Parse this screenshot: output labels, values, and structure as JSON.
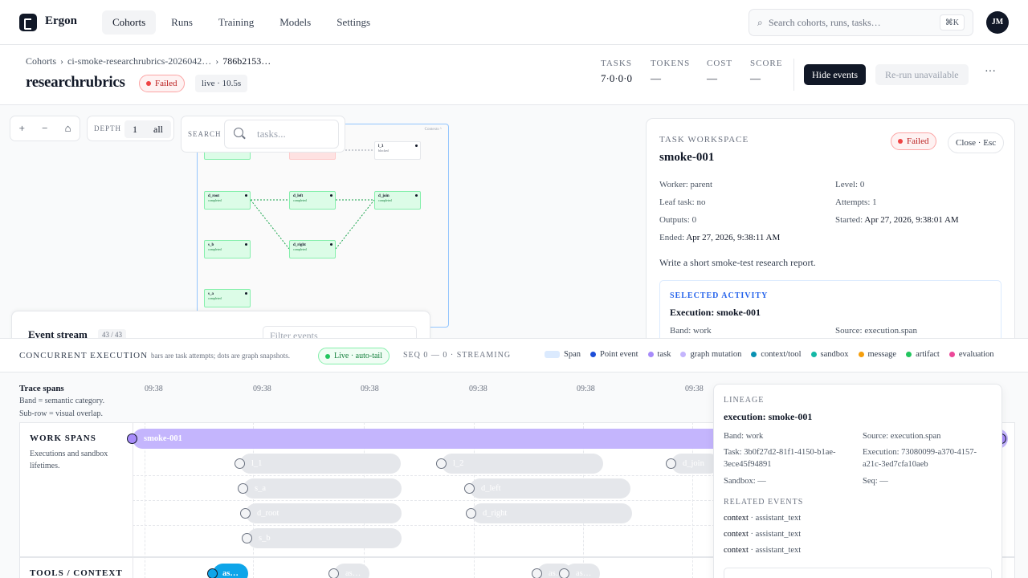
{
  "app": {
    "name": "Ergon",
    "avatar": "JM"
  },
  "nav": [
    "Cohorts",
    "Runs",
    "Training",
    "Models",
    "Settings"
  ],
  "search": {
    "placeholder": "Search cohorts, runs, tasks…",
    "shortcut": "⌘K"
  },
  "breadcrumb": [
    "Cohorts",
    "ci-smoke-researchrubrics-2026042…",
    "786b2153…"
  ],
  "header": {
    "title": "researchrubrics",
    "status": "Failed",
    "live": "live · 10.5s",
    "stats": [
      {
        "key": "TASKS",
        "value": "7·0·0·0"
      },
      {
        "key": "TOKENS",
        "value": "—"
      },
      {
        "key": "COST",
        "value": "—"
      },
      {
        "key": "SCORE",
        "value": "—"
      }
    ],
    "hide_events": "Hide events",
    "rerun": "Re-run unavailable",
    "more": "···"
  },
  "canvas": {
    "zoom": [
      "+",
      "−",
      "⌂"
    ],
    "depth_label": "DEPTH",
    "depth_value": "1",
    "depth_all": "all",
    "search_label": "SEARCH",
    "search_placeholder": "tasks...",
    "minimap_header": "Contexts ^",
    "nodes": [
      {
        "name": "",
        "status": "completed"
      },
      {
        "name": "",
        "status": "failed"
      },
      {
        "name": "l_3",
        "status": "blocked"
      },
      {
        "name": "d_root",
        "status": "completed"
      },
      {
        "name": "d_left",
        "status": "completed"
      },
      {
        "name": "d_join",
        "status": "completed"
      },
      {
        "name": "s_b",
        "status": "completed"
      },
      {
        "name": "d_right",
        "status": "completed"
      },
      {
        "name": "s_a",
        "status": "completed"
      }
    ]
  },
  "event_stream": {
    "title": "Event stream",
    "count": "43 / 43",
    "filter_placeholder": "Filter events"
  },
  "workspace": {
    "kicker": "TASK WORKSPACE",
    "title": "smoke-001",
    "status": "Failed",
    "close": "Close · Esc",
    "fields": {
      "worker_k": "Worker:",
      "worker_v": "parent",
      "level_k": "Level:",
      "level_v": "0",
      "leaf_k": "Leaf task:",
      "leaf_v": "no",
      "attempts_k": "Attempts:",
      "attempts_v": "1",
      "outputs_k": "Outputs:",
      "outputs_v": "0",
      "started_k": "Started:",
      "started_v": "Apr 27, 2026, 9:38:01 AM",
      "ended_k": "Ended:",
      "ended_v": "Apr 27, 2026, 9:38:11 AM"
    },
    "description": "Write a short smoke-test research report.",
    "selected": {
      "kicker": "SELECTED ACTIVITY",
      "title": "Execution: smoke-001",
      "band": "Band: work",
      "source": "Source: execution.span"
    }
  },
  "concurrent": {
    "kicker": "CONCURRENT EXECUTION",
    "desc": "bars are task attempts; dots are graph snapshots.",
    "live": "Live · auto-tail",
    "seq": "SEQ 0 — 0 · STREAMING",
    "legend": [
      {
        "label": "Span",
        "color": "#dbeafe"
      },
      {
        "label": "Point event",
        "color": "#1d4ed8"
      },
      {
        "label": "task",
        "color": "#a78bfa"
      },
      {
        "label": "graph mutation",
        "color": "#c4b5fd"
      },
      {
        "label": "context/tool",
        "color": "#0891b2"
      },
      {
        "label": "sandbox",
        "color": "#14b8a6"
      },
      {
        "label": "message",
        "color": "#f59e0b"
      },
      {
        "label": "artifact",
        "color": "#22c55e"
      },
      {
        "label": "evaluation",
        "color": "#ec4899"
      }
    ]
  },
  "timeline": {
    "title": "Trace spans",
    "sub1": "Band = semantic category.",
    "sub2": "Sub-row = visual overlap.",
    "ticks": [
      "09:38",
      "09:38",
      "09:38",
      "09:38",
      "09:38",
      "09:38"
    ],
    "work_title": "WORK SPANS",
    "work_desc": "Executions and sandbox lifetimes.",
    "tools_title": "TOOLS / CONTEXT",
    "main_bar": "smoke-001",
    "bars": [
      "l_1",
      "l_2",
      "d_join",
      "s_a",
      "d_left",
      "d_root",
      "d_right",
      "s_b"
    ],
    "tool_bars": [
      "as…",
      "as…",
      "as…",
      "as…"
    ]
  },
  "lineage": {
    "kicker": "LINEAGE",
    "title": "execution: smoke-001",
    "band": "Band: work",
    "source": "Source: execution.span",
    "task": "Task: 3b0f27d2-81f1-4150-b1ae-3ece45f94891",
    "execution": "Execution: 73080099-a370-4157-a21c-3ed7cfa10aeb",
    "sandbox": "Sandbox: —",
    "seq": "Seq: —",
    "related_kicker": "RELATED EVENTS",
    "related": [
      {
        "kind": "context",
        "name": "· assistant_text"
      },
      {
        "kind": "context",
        "name": "· assistant_text"
      },
      {
        "kind": "context",
        "name": "· assistant_text"
      }
    ]
  }
}
